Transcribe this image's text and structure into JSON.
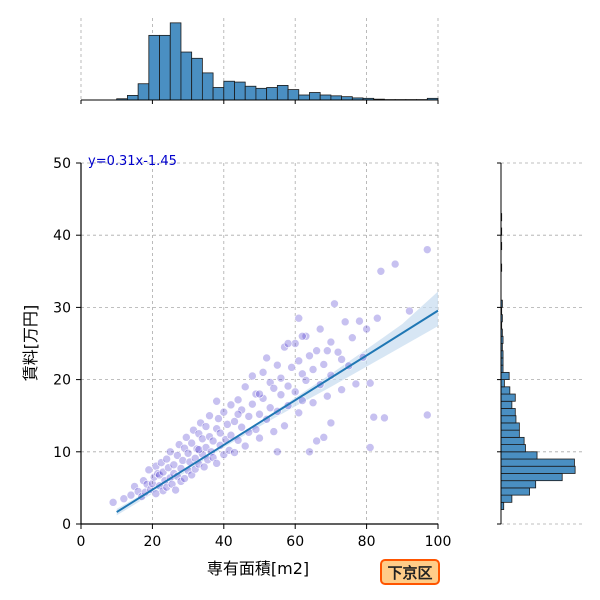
{
  "colors": {
    "points": "#4433cc",
    "hist_fill": "#4a8fc2",
    "hist_edge": "#1a1a1a",
    "reg_line": "#1f77b4",
    "band": "#c6dbef",
    "grid": "#aaaaaa",
    "equation": "#0000cc",
    "badge_fill": "#ffcc88",
    "badge_border": "#ff5500",
    "badge_text": "#222222"
  },
  "chart_data": {
    "type": "scatter",
    "title": "",
    "xlabel": "専有面積[m2]",
    "ylabel": "賃料[万円]",
    "xlim": [
      0,
      100
    ],
    "ylim": [
      0,
      50
    ],
    "xticks": [
      "0",
      "20",
      "40",
      "60",
      "80",
      "100"
    ],
    "yticks": [
      "0",
      "10",
      "20",
      "30",
      "40",
      "50"
    ],
    "grid": true,
    "regression": {
      "equation": "y=0.31x-1.45",
      "slope": 0.31,
      "intercept": -1.45,
      "x_range": [
        10,
        100
      ],
      "ci_lower": [
        [
          10,
          1.2
        ],
        [
          20,
          4.2
        ],
        [
          30,
          7.4
        ],
        [
          40,
          10.6
        ],
        [
          50,
          13.5
        ],
        [
          60,
          16.3
        ],
        [
          70,
          19.0
        ],
        [
          80,
          21.8
        ],
        [
          90,
          24.6
        ],
        [
          100,
          27.4
        ]
      ],
      "ci_upper": [
        [
          10,
          2.1
        ],
        [
          20,
          4.9
        ],
        [
          30,
          8.0
        ],
        [
          40,
          11.1
        ],
        [
          50,
          14.2
        ],
        [
          60,
          17.5
        ],
        [
          70,
          20.8
        ],
        [
          80,
          24.2
        ],
        [
          90,
          27.7
        ],
        [
          100,
          32.2
        ]
      ]
    },
    "points": [
      [
        9,
        3
      ],
      [
        12,
        3.5
      ],
      [
        14,
        4
      ],
      [
        15,
        5.2
      ],
      [
        16,
        4.5
      ],
      [
        17,
        3.8
      ],
      [
        17.5,
        6
      ],
      [
        18,
        4.4
      ],
      [
        18.5,
        5.5
      ],
      [
        19,
        7.5
      ],
      [
        19.5,
        4.8
      ],
      [
        20,
        5.6
      ],
      [
        20.5,
        6.5
      ],
      [
        21,
        4.2
      ],
      [
        21,
        8
      ],
      [
        21.5,
        7
      ],
      [
        22,
        5.3
      ],
      [
        22,
        6.8
      ],
      [
        22.5,
        8.5
      ],
      [
        23,
        4.6
      ],
      [
        23,
        7.2
      ],
      [
        23.5,
        6
      ],
      [
        24,
        9
      ],
      [
        24,
        5.1
      ],
      [
        24.5,
        7.8
      ],
      [
        25,
        6.4
      ],
      [
        25,
        10
      ],
      [
        25.5,
        5.5
      ],
      [
        26,
        8.2
      ],
      [
        26,
        7
      ],
      [
        26.5,
        4.7
      ],
      [
        27,
        9.5
      ],
      [
        27,
        6.6
      ],
      [
        27.5,
        11
      ],
      [
        28,
        7.7
      ],
      [
        28,
        5.9
      ],
      [
        28.5,
        8.8
      ],
      [
        29,
        10.5
      ],
      [
        29,
        6.3
      ],
      [
        29.5,
        12
      ],
      [
        30,
        7.4
      ],
      [
        30,
        9.8
      ],
      [
        30.5,
        8.6
      ],
      [
        31,
        11.2
      ],
      [
        31,
        6.8
      ],
      [
        31.5,
        13
      ],
      [
        32,
        9.1
      ],
      [
        32,
        7.6
      ],
      [
        32.5,
        10.4
      ],
      [
        33,
        12.5
      ],
      [
        33,
        8.3
      ],
      [
        33.5,
        14
      ],
      [
        34,
        9.7
      ],
      [
        34,
        11.8
      ],
      [
        34.5,
        7.9
      ],
      [
        35,
        10.6
      ],
      [
        35,
        13.5
      ],
      [
        35.5,
        8.9
      ],
      [
        36,
        12.1
      ],
      [
        36,
        15
      ],
      [
        36.5,
        10
      ],
      [
        37,
        9.2
      ],
      [
        37,
        11.5
      ],
      [
        38,
        13.2
      ],
      [
        38,
        8.4
      ],
      [
        38.5,
        14.6
      ],
      [
        39,
        10.9
      ],
      [
        39,
        12.6
      ],
      [
        40,
        9.6
      ],
      [
        40,
        15.5
      ],
      [
        40.5,
        11.7
      ],
      [
        41,
        13.8
      ],
      [
        41.5,
        10.2
      ],
      [
        42,
        16.5
      ],
      [
        42,
        12.3
      ],
      [
        43,
        14.2
      ],
      [
        43,
        9.9
      ],
      [
        44,
        11.6
      ],
      [
        44,
        17.2
      ],
      [
        45,
        13.4
      ],
      [
        45,
        15.8
      ],
      [
        46,
        10.8
      ],
      [
        46,
        19
      ],
      [
        47,
        14.9
      ],
      [
        47,
        12.7
      ],
      [
        48,
        16.6
      ],
      [
        48,
        20.5
      ],
      [
        49,
        13.1
      ],
      [
        49,
        18
      ],
      [
        50,
        15.2
      ],
      [
        50,
        11.9
      ],
      [
        51,
        21
      ],
      [
        51,
        17.4
      ],
      [
        52,
        14.5
      ],
      [
        52,
        23
      ],
      [
        53,
        16.1
      ],
      [
        53,
        19.6
      ],
      [
        54,
        12.8
      ],
      [
        54,
        18.8
      ],
      [
        55,
        22
      ],
      [
        55,
        15.6
      ],
      [
        56,
        20.2
      ],
      [
        56,
        17.9
      ],
      [
        57,
        13.6
      ],
      [
        57,
        24.5
      ],
      [
        58,
        19.1
      ],
      [
        58,
        16.4
      ],
      [
        59,
        21.7
      ],
      [
        60,
        18.3
      ],
      [
        60,
        25
      ],
      [
        61,
        15.4
      ],
      [
        61,
        22.6
      ],
      [
        62,
        20.8
      ],
      [
        62,
        17.1
      ],
      [
        63,
        26
      ],
      [
        63,
        19.9
      ],
      [
        64,
        23.3
      ],
      [
        65,
        16.8
      ],
      [
        65,
        21.4
      ],
      [
        66,
        24
      ],
      [
        67,
        19.3
      ],
      [
        67,
        27
      ],
      [
        68,
        22.1
      ],
      [
        69,
        17.7
      ],
      [
        70,
        25.2
      ],
      [
        70,
        20.6
      ],
      [
        71,
        30.5
      ],
      [
        72,
        23.8
      ],
      [
        73,
        18.6
      ],
      [
        74,
        28
      ],
      [
        75,
        21.9
      ],
      [
        76,
        25.8
      ],
      [
        77,
        19.4
      ],
      [
        78,
        28.1
      ],
      [
        79,
        23.1
      ],
      [
        80,
        27
      ],
      [
        81,
        19.5
      ],
      [
        82,
        14.8
      ],
      [
        83,
        28.5
      ],
      [
        84,
        35
      ],
      [
        85,
        14.7
      ],
      [
        88,
        36
      ],
      [
        92,
        29.5
      ],
      [
        97,
        38
      ],
      [
        97,
        15.1
      ],
      [
        64,
        10
      ],
      [
        70,
        14
      ],
      [
        68,
        12
      ],
      [
        81,
        10.6
      ],
      [
        62,
        26
      ],
      [
        69,
        24
      ],
      [
        55,
        10
      ],
      [
        50,
        18
      ],
      [
        44,
        15.2
      ],
      [
        38,
        17
      ],
      [
        58,
        25
      ],
      [
        61,
        28.5
      ],
      [
        66,
        11.5
      ],
      [
        73,
        22.8
      ],
      [
        33,
        10.3
      ]
    ],
    "top_hist": {
      "bin_width": 3,
      "bins": [
        [
          10,
          0.3
        ],
        [
          13,
          1.1
        ],
        [
          16,
          3.9
        ],
        [
          19,
          15.5
        ],
        [
          22,
          15.5
        ],
        [
          25,
          18.5
        ],
        [
          28,
          11.5
        ],
        [
          31,
          10
        ],
        [
          34,
          6.5
        ],
        [
          37,
          3
        ],
        [
          40,
          4.5
        ],
        [
          43,
          4.3
        ],
        [
          46,
          3.3
        ],
        [
          49,
          2.8
        ],
        [
          52,
          3
        ],
        [
          55,
          3.5
        ],
        [
          58,
          2.5
        ],
        [
          61,
          1.2
        ],
        [
          64,
          1.8
        ],
        [
          67,
          1.2
        ],
        [
          70,
          1
        ],
        [
          73,
          0.8
        ],
        [
          76,
          0.5
        ],
        [
          79,
          0.4
        ],
        [
          82,
          0.2
        ],
        [
          85,
          0.1
        ],
        [
          88,
          0.1
        ],
        [
          91,
          0.1
        ],
        [
          94,
          0.1
        ],
        [
          97,
          0.4
        ]
      ]
    },
    "right_hist": {
      "bin_height": 1,
      "bins": [
        [
          2,
          0.4
        ],
        [
          3,
          1.6
        ],
        [
          4,
          4.2
        ],
        [
          5,
          5.1
        ],
        [
          6,
          9
        ],
        [
          7,
          10.9
        ],
        [
          8,
          10.8
        ],
        [
          9,
          5.3
        ],
        [
          10,
          3.6
        ],
        [
          11,
          3.4
        ],
        [
          12,
          2.7
        ],
        [
          13,
          2.7
        ],
        [
          14,
          2.2
        ],
        [
          15,
          2.1
        ],
        [
          16,
          1.6
        ],
        [
          17,
          2.1
        ],
        [
          18,
          1.3
        ],
        [
          19,
          0.5
        ],
        [
          20,
          1.2
        ],
        [
          21,
          0.3
        ],
        [
          22,
          0.3
        ],
        [
          23,
          0.3
        ],
        [
          24,
          0.2
        ],
        [
          25,
          0.3
        ],
        [
          26,
          0.2
        ],
        [
          27,
          0.1
        ],
        [
          28,
          0.2
        ],
        [
          29,
          0.1
        ],
        [
          30,
          0.2
        ],
        [
          35,
          0.1
        ],
        [
          38,
          0.1
        ],
        [
          40,
          0.1
        ],
        [
          42,
          0.1
        ]
      ]
    },
    "district": "下京区"
  }
}
